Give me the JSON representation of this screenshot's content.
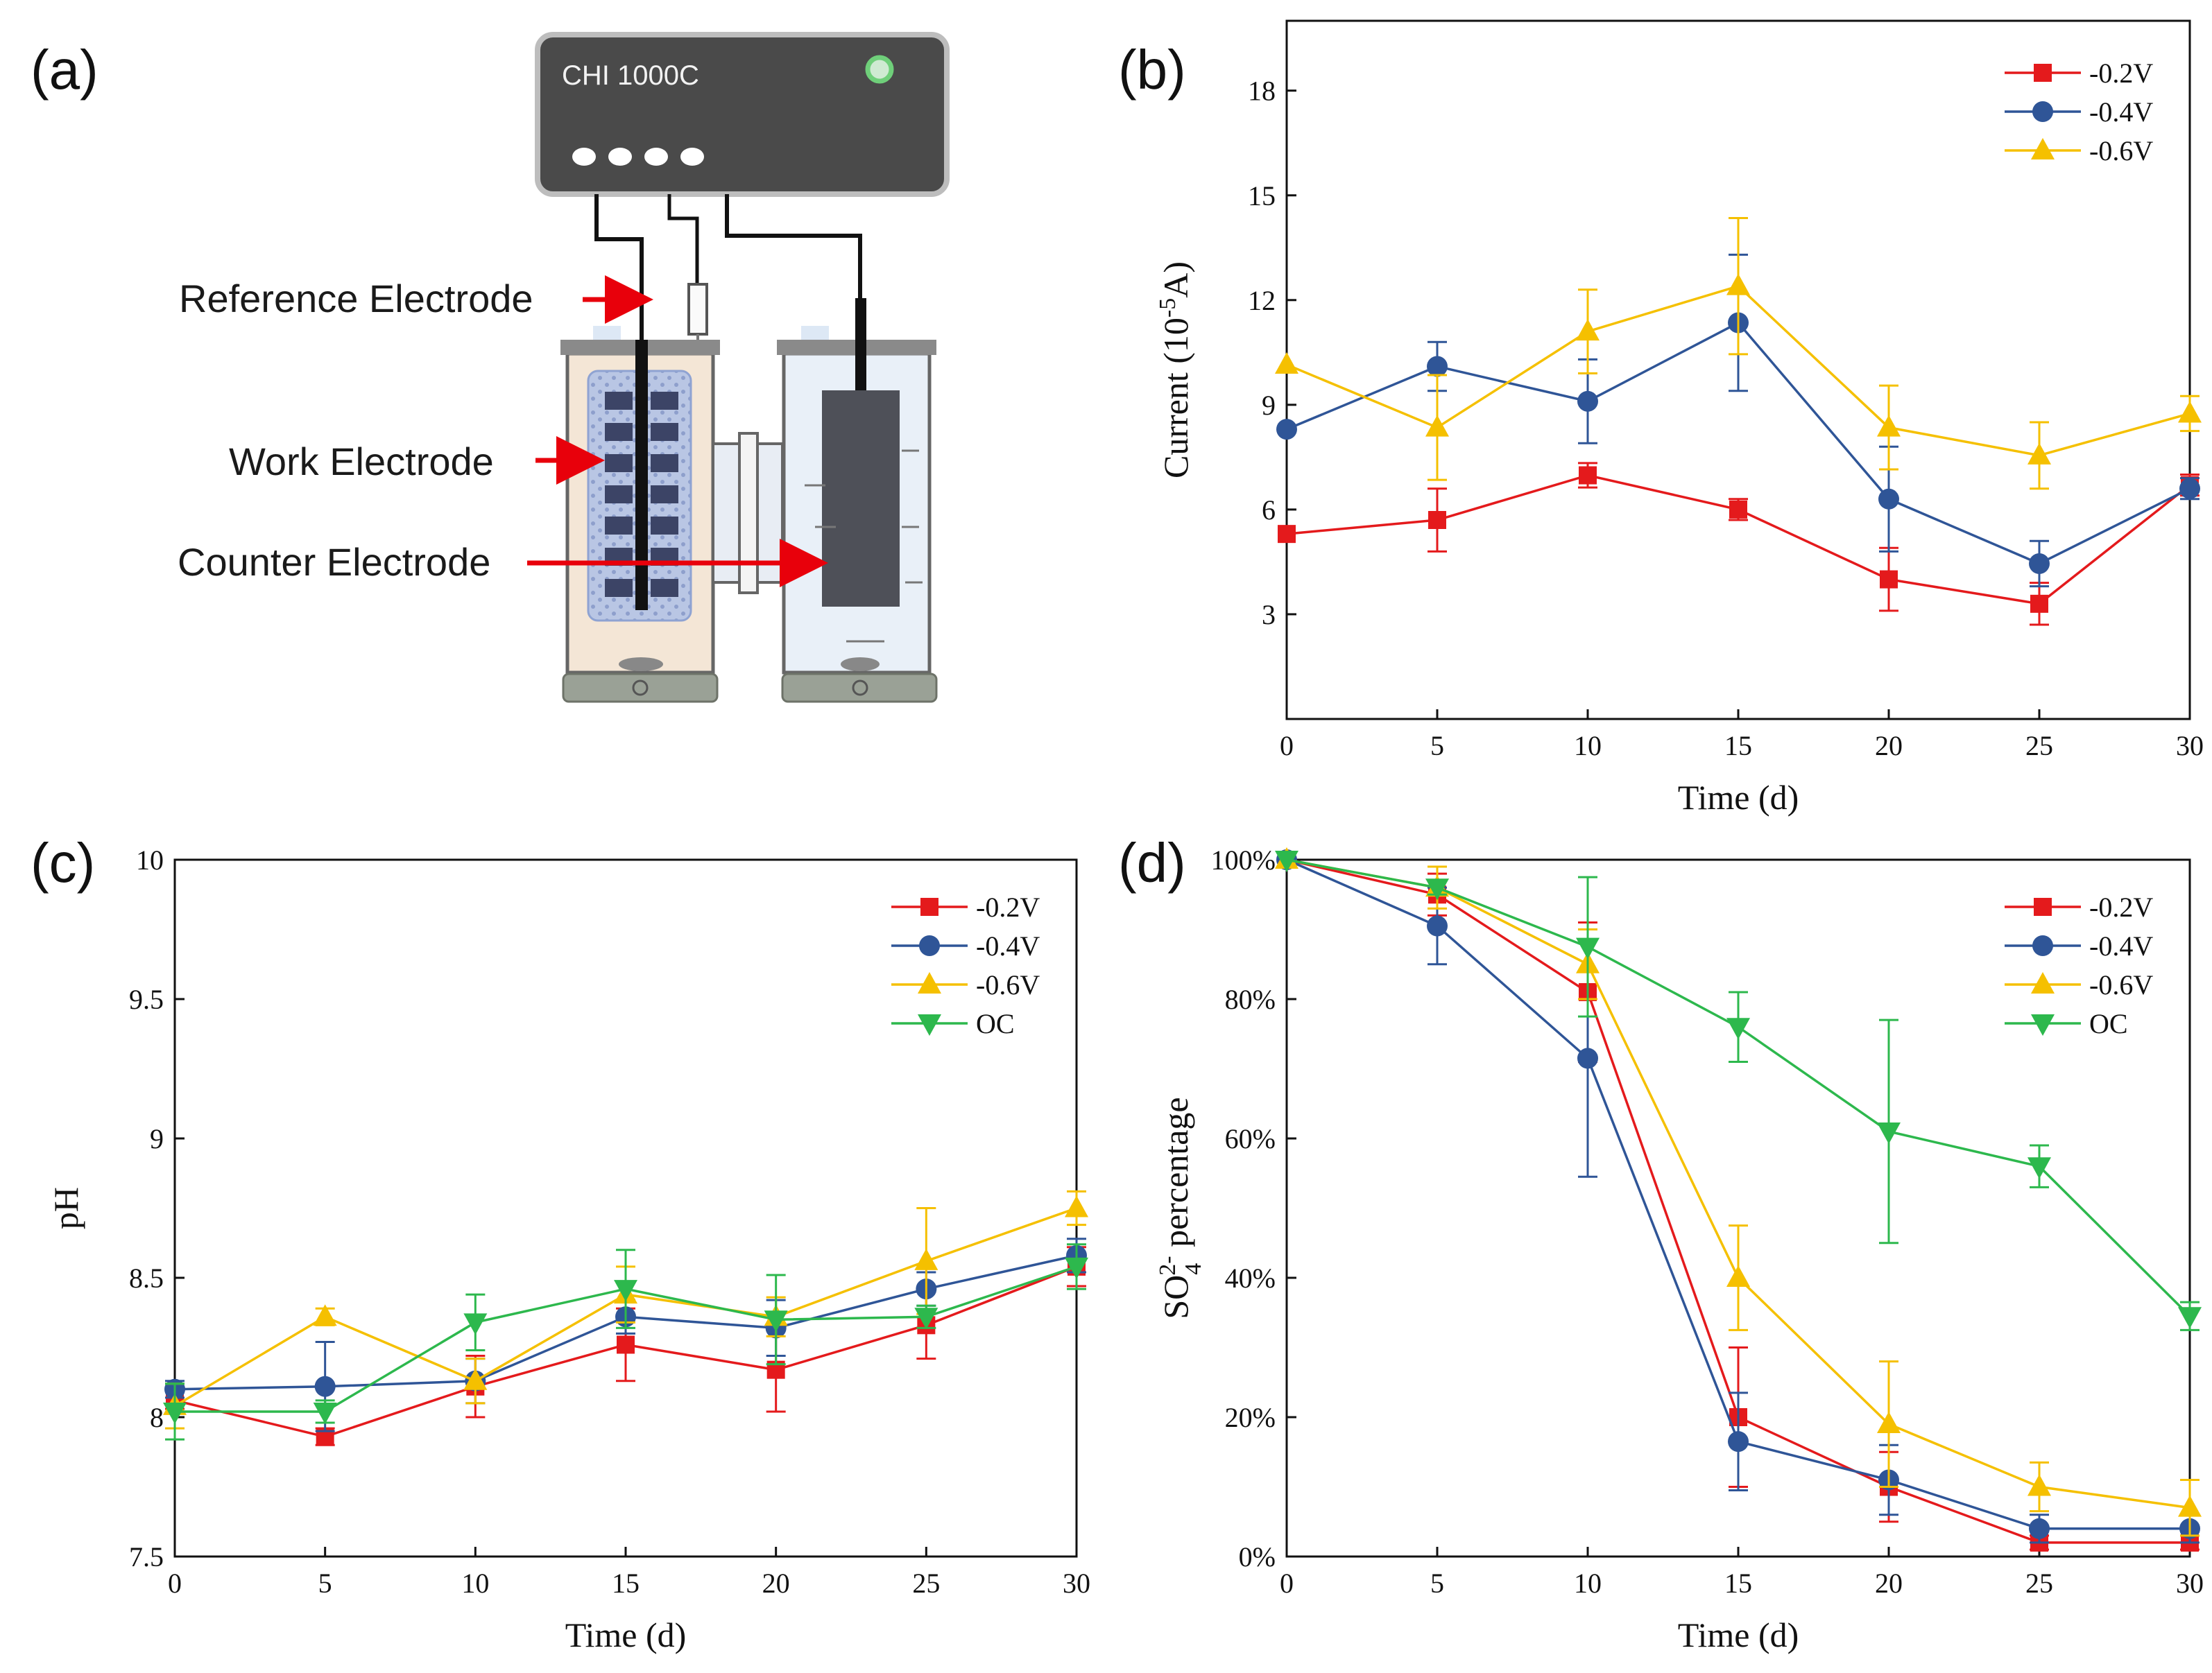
{
  "panels": {
    "a": "(a)",
    "b": "(b)",
    "c": "(c)",
    "d": "(d)"
  },
  "colors": {
    "red": "#e41a1c",
    "blue": "#2f5597",
    "yellow": "#f5c000",
    "green": "#2db84d"
  },
  "diagram": {
    "device": "CHI 1000C",
    "reference": "Reference Electrode",
    "work": "Work Electrode",
    "counter": "Counter Electrode"
  },
  "chart_data": [
    {
      "id": "b",
      "type": "line",
      "xlabel": "Time (d)",
      "ylabel_main": "Current (10",
      "ylabel_sup": "-5",
      "ylabel_tail": "A)",
      "x": [
        0,
        5,
        10,
        15,
        20,
        25,
        30
      ],
      "xlim": [
        0,
        30
      ],
      "ylim": [
        0,
        20
      ],
      "xticks": [
        0,
        5,
        10,
        15,
        20,
        25,
        30
      ],
      "yticks": [
        3,
        6,
        9,
        12,
        15,
        18
      ],
      "ytick_labels": [
        "3",
        "6",
        "9",
        "12",
        "15",
        "18"
      ],
      "legend_position": "top-right",
      "series": [
        {
          "name": "-0.2V",
          "color": "#e41a1c",
          "marker": "square",
          "values": [
            5.3,
            5.7,
            6.98,
            6.0,
            4.0,
            3.3,
            6.7
          ],
          "errors": [
            0,
            0.9,
            0.35,
            0.3,
            0.9,
            0.6,
            0.3
          ]
        },
        {
          "name": "-0.4V",
          "color": "#2f5597",
          "marker": "circle",
          "values": [
            8.3,
            10.1,
            9.1,
            11.35,
            6.3,
            4.45,
            6.6
          ],
          "errors": [
            0,
            0.7,
            1.2,
            1.95,
            1.5,
            0.65,
            0.3
          ]
        },
        {
          "name": "-0.6V",
          "color": "#f5c000",
          "marker": "triangle-up",
          "values": [
            10.15,
            8.35,
            11.1,
            12.4,
            8.35,
            7.55,
            8.75
          ],
          "errors": [
            0,
            1.5,
            1.2,
            1.95,
            1.2,
            0.95,
            0.5
          ]
        }
      ]
    },
    {
      "id": "c",
      "type": "line",
      "xlabel": "Time (d)",
      "ylabel": "pH",
      "x": [
        0,
        5,
        10,
        15,
        20,
        25,
        30
      ],
      "xlim": [
        0,
        30
      ],
      "ylim": [
        7.5,
        10
      ],
      "xticks": [
        0,
        5,
        10,
        15,
        20,
        25,
        30
      ],
      "yticks": [
        7.5,
        8,
        8.5,
        9,
        9.5,
        10
      ],
      "ytick_labels": [
        "7.5",
        "8",
        "8.5",
        "9",
        "9.5",
        "10"
      ],
      "legend_position": "top-right",
      "series": [
        {
          "name": "-0.2V",
          "color": "#e41a1c",
          "marker": "square",
          "values": [
            8.06,
            7.93,
            8.11,
            8.26,
            8.17,
            8.33,
            8.54
          ],
          "errors": [
            0.03,
            0.03,
            0.11,
            0.13,
            0.15,
            0.12,
            0.07
          ]
        },
        {
          "name": "-0.4V",
          "color": "#2f5597",
          "marker": "circle",
          "values": [
            8.1,
            8.11,
            8.13,
            8.36,
            8.32,
            8.46,
            8.58
          ],
          "errors": [
            0.03,
            0.16,
            0.08,
            0.06,
            0.1,
            0.06,
            0.06
          ]
        },
        {
          "name": "-0.6V",
          "color": "#f5c000",
          "marker": "triangle-up",
          "values": [
            8.04,
            8.36,
            8.13,
            8.44,
            8.36,
            8.56,
            8.75
          ],
          "errors": [
            0.08,
            0.03,
            0.08,
            0.1,
            0.07,
            0.19,
            0.06
          ]
        },
        {
          "name": "OC",
          "color": "#2db84d",
          "marker": "triangle-down",
          "values": [
            8.02,
            8.02,
            8.34,
            8.46,
            8.35,
            8.36,
            8.54
          ],
          "errors": [
            0.1,
            0.04,
            0.1,
            0.14,
            0.16,
            0.04,
            0.08
          ]
        }
      ]
    },
    {
      "id": "d",
      "type": "line",
      "xlabel": "Time (d)",
      "ylabel_main": "SO",
      "ylabel_sub": "4",
      "ylabel_sup": "2-",
      "ylabel_tail": " percentage",
      "x": [
        0,
        5,
        10,
        15,
        20,
        25,
        30
      ],
      "xlim": [
        0,
        30
      ],
      "ylim": [
        0,
        100
      ],
      "xticks": [
        0,
        5,
        10,
        15,
        20,
        25,
        30
      ],
      "yticks": [
        0,
        20,
        40,
        60,
        80,
        100
      ],
      "ytick_labels": [
        "0%",
        "20%",
        "40%",
        "60%",
        "80%",
        "100%"
      ],
      "legend_position": "top-right",
      "series": [
        {
          "name": "-0.2V",
          "color": "#e41a1c",
          "marker": "square",
          "values": [
            100,
            95,
            81,
            20,
            10,
            2,
            2
          ],
          "errors": [
            0,
            3,
            10,
            10,
            5,
            1,
            1
          ]
        },
        {
          "name": "-0.4V",
          "color": "#2f5597",
          "marker": "circle",
          "values": [
            100,
            90.5,
            71.5,
            16.5,
            11,
            4,
            4
          ],
          "errors": [
            0,
            5.5,
            17,
            7,
            5,
            2,
            2
          ]
        },
        {
          "name": "-0.6V",
          "color": "#f5c000",
          "marker": "triangle-up",
          "values": [
            100,
            96,
            85,
            40,
            19,
            10,
            7
          ],
          "errors": [
            0,
            3,
            5,
            7.5,
            9,
            3.5,
            4
          ]
        },
        {
          "name": "OC",
          "color": "#2db84d",
          "marker": "triangle-down",
          "values": [
            100,
            96,
            87.5,
            76,
            61,
            56,
            34.5
          ],
          "errors": [
            0,
            1,
            10,
            5,
            16,
            3,
            2
          ]
        }
      ]
    }
  ]
}
